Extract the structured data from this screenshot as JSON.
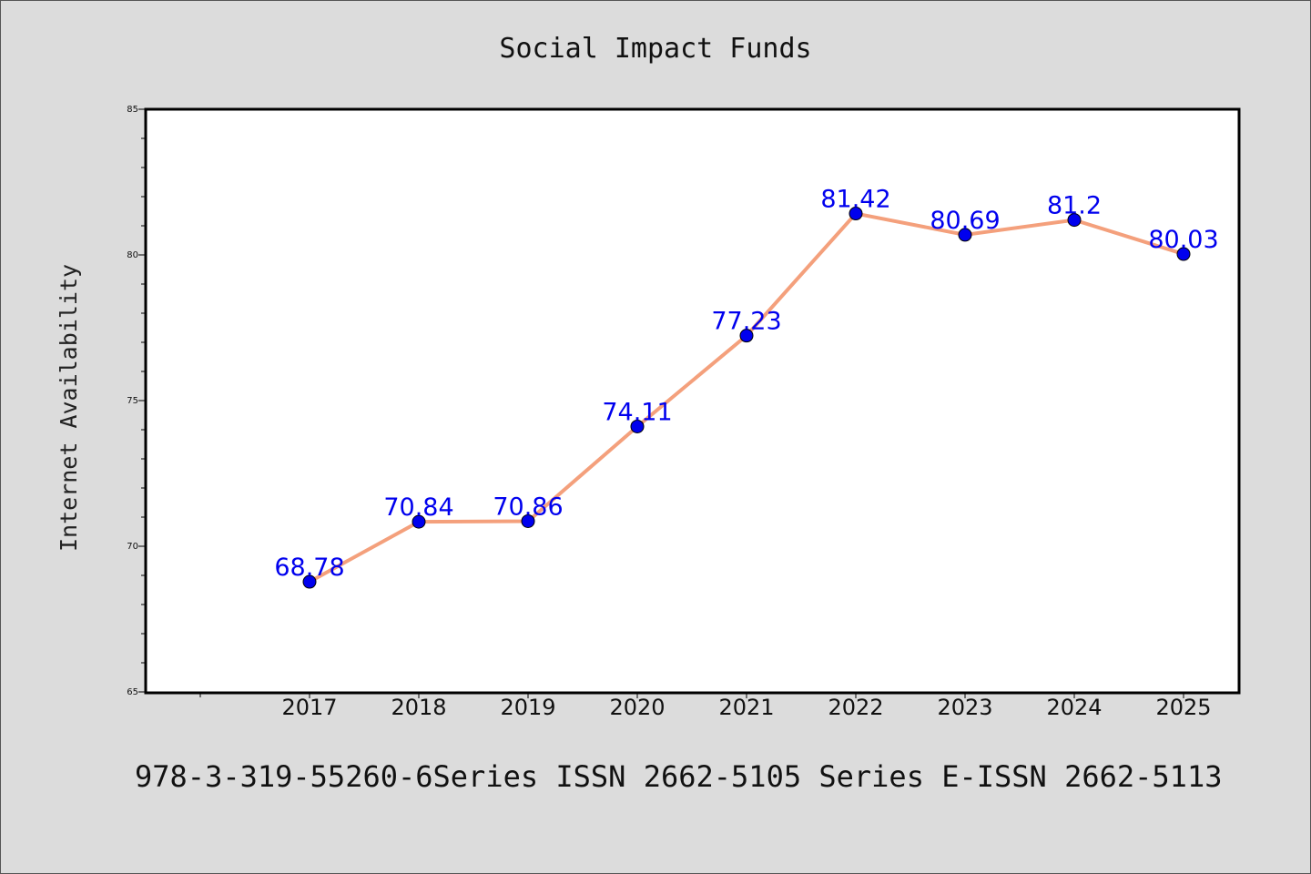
{
  "chart_data": {
    "type": "line",
    "title": "Social Impact Funds",
    "xlabel": "",
    "ylabel": "Internet Availability",
    "categories": [
      "2017",
      "2018",
      "2019",
      "2020",
      "2021",
      "2022",
      "2023",
      "2024",
      "2025"
    ],
    "series": [
      {
        "values": [
          68.78,
          70.84,
          70.86,
          74.11,
          77.23,
          81.42,
          80.69,
          81.2,
          80.03
        ],
        "data_labels": [
          "68.78",
          "70.84",
          "70.86",
          "74.11",
          "77.23",
          "81.42",
          "80.69",
          "81.2",
          "80.03"
        ],
        "line_color": "#f4a07c",
        "marker_color": "#0000ee"
      }
    ],
    "ylim": [
      65,
      85
    ],
    "yticks": [
      65,
      70,
      75,
      80,
      85
    ],
    "grid": false,
    "legend": "none"
  },
  "footer": {
    "text": "978-3-319-55260-6Series ISSN 2662-5105 Series E-ISSN 2662-5113"
  },
  "colors": {
    "background": "#dcdcdc",
    "plot_background": "#ffffff",
    "label_color": "#0000ee"
  }
}
